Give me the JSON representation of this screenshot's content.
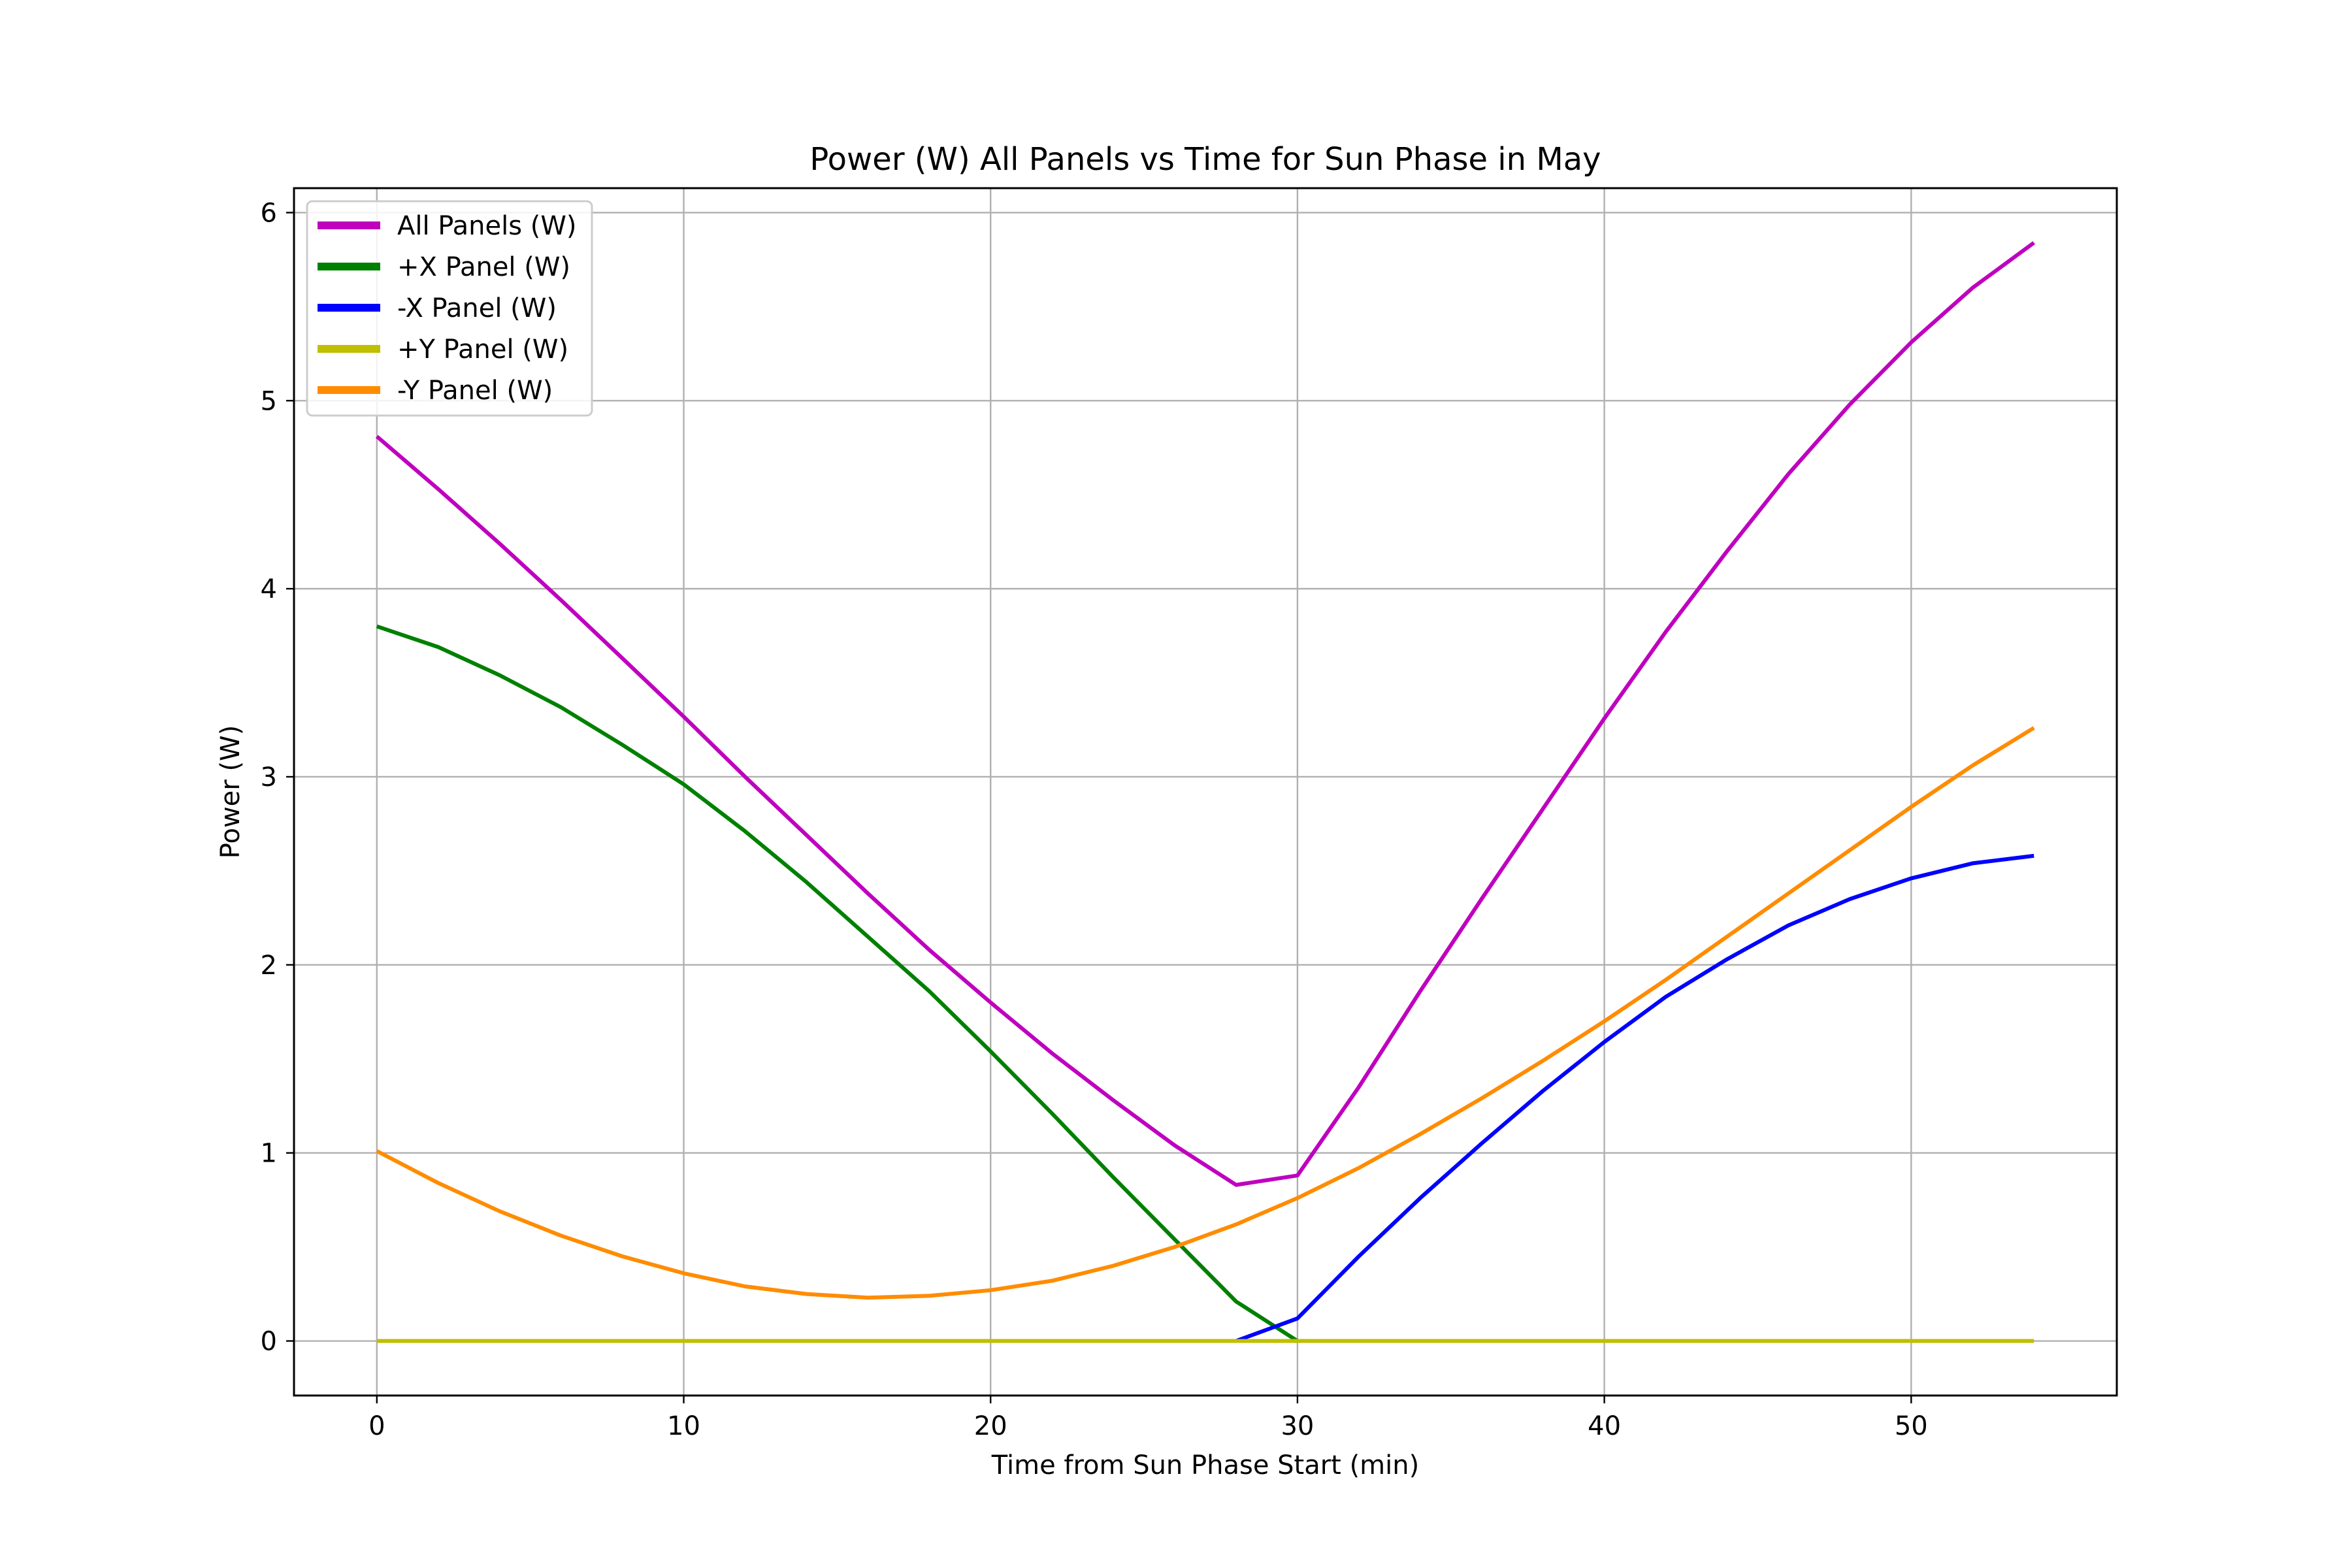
{
  "chart_data": {
    "type": "line",
    "title": "Power (W) All Panels vs Time for Sun Phase in May",
    "xlabel": "Time from Sun Phase Start (min)",
    "ylabel": "Power (W)",
    "xlim": [
      -2.7,
      56.7
    ],
    "ylim": [
      -0.29,
      6.13
    ],
    "xticks": [
      0,
      10,
      20,
      30,
      40,
      50
    ],
    "yticks": [
      0,
      1,
      2,
      3,
      4,
      5,
      6
    ],
    "grid": true,
    "legend_position": "top-left",
    "series": [
      {
        "name": "All Panels (W)",
        "color": "#bf00bf",
        "x": [
          0,
          2,
          4,
          6,
          8,
          10,
          12,
          14,
          16,
          18,
          20,
          22,
          24,
          26,
          28,
          30,
          32,
          34,
          36,
          38,
          40,
          42,
          44,
          46,
          48,
          50,
          52,
          54
        ],
        "y": [
          4.81,
          4.53,
          4.24,
          3.94,
          3.63,
          3.32,
          3.0,
          2.69,
          2.38,
          2.08,
          1.8,
          1.53,
          1.28,
          1.04,
          0.83,
          0.88,
          1.35,
          1.86,
          2.35,
          2.83,
          3.31,
          3.77,
          4.2,
          4.61,
          4.98,
          5.31,
          5.6,
          5.84
        ]
      },
      {
        "name": "+X Panel (W)",
        "color": "#008000",
        "x": [
          0,
          2,
          4,
          6,
          8,
          10,
          12,
          14,
          16,
          18,
          20,
          22,
          24,
          26,
          28,
          30
        ],
        "y": [
          3.8,
          3.69,
          3.54,
          3.37,
          3.17,
          2.96,
          2.71,
          2.44,
          2.15,
          1.86,
          1.54,
          1.21,
          0.87,
          0.54,
          0.21,
          0.0
        ]
      },
      {
        "name": "-X Panel (W)",
        "color": "#0000ff",
        "x": [
          28,
          30,
          32,
          34,
          36,
          38,
          40,
          42,
          44,
          46,
          48,
          50,
          52,
          54
        ],
        "y": [
          0.0,
          0.12,
          0.45,
          0.76,
          1.05,
          1.33,
          1.59,
          1.83,
          2.03,
          2.21,
          2.35,
          2.46,
          2.54,
          2.58
        ]
      },
      {
        "name": "+Y Panel (W)",
        "color": "#bfbf00",
        "x": [
          0,
          2,
          4,
          6,
          8,
          10,
          12,
          14,
          16,
          18,
          20,
          22,
          24,
          26,
          28,
          30,
          32,
          34,
          36,
          38,
          40,
          42,
          44,
          46,
          48,
          50,
          52,
          54
        ],
        "y": [
          0,
          0,
          0,
          0,
          0,
          0,
          0,
          0,
          0,
          0,
          0,
          0,
          0,
          0,
          0,
          0,
          0,
          0,
          0,
          0,
          0,
          0,
          0,
          0,
          0,
          0,
          0,
          0
        ]
      },
      {
        "name": "-Y Panel (W)",
        "color": "#ff8c00",
        "x": [
          0,
          2,
          4,
          6,
          8,
          10,
          12,
          14,
          16,
          18,
          20,
          22,
          24,
          26,
          28,
          30,
          32,
          34,
          36,
          38,
          40,
          42,
          44,
          46,
          48,
          50,
          52,
          54
        ],
        "y": [
          1.01,
          0.84,
          0.69,
          0.56,
          0.45,
          0.36,
          0.29,
          0.25,
          0.23,
          0.24,
          0.27,
          0.32,
          0.4,
          0.5,
          0.62,
          0.76,
          0.92,
          1.1,
          1.29,
          1.49,
          1.7,
          1.92,
          2.15,
          2.38,
          2.61,
          2.84,
          3.06,
          3.26
        ]
      }
    ]
  }
}
